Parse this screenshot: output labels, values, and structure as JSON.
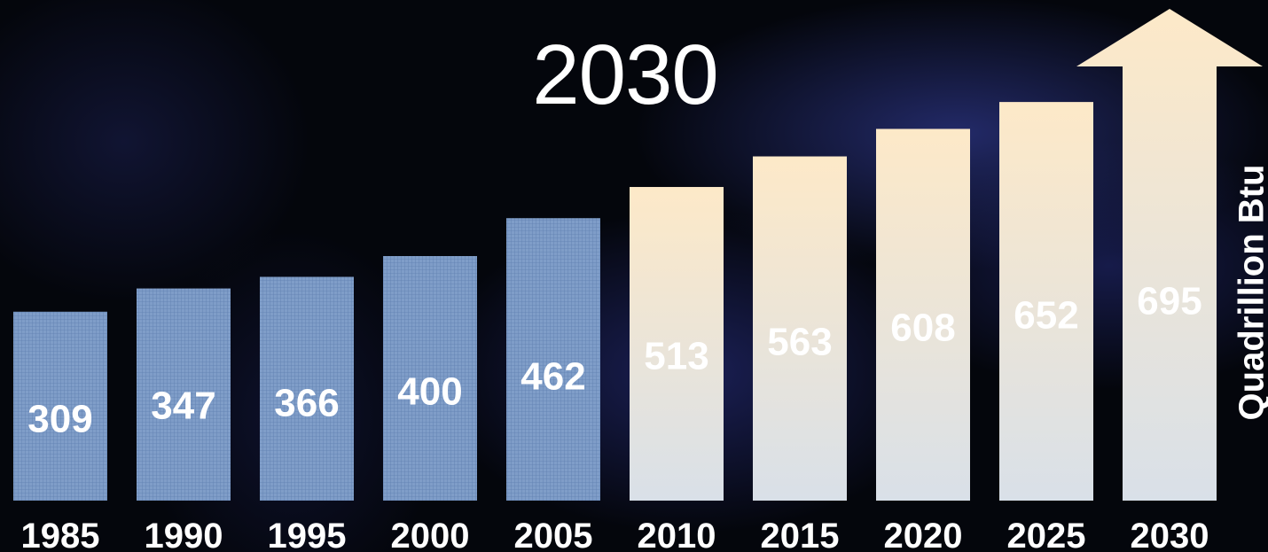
{
  "title": "2030",
  "colors": {
    "history_bar": "#7f9dc8",
    "projection_top": "#fde9c8",
    "projection_bottom": "#d9e0e8",
    "history_label": "#ffffff",
    "projection_label": "#ffffff"
  },
  "chart_data": {
    "type": "bar",
    "ylabel": "Quadrillion Btu",
    "categories": [
      "1985",
      "1990",
      "1995",
      "2000",
      "2005",
      "2010",
      "2015",
      "2020",
      "2025",
      "2030"
    ],
    "values": [
      309,
      347,
      366,
      400,
      462,
      513,
      563,
      608,
      652,
      695
    ],
    "history_categories": [
      "1985",
      "1990",
      "1995",
      "2000",
      "2005"
    ],
    "projection_categories": [
      "2010",
      "2015",
      "2020",
      "2025",
      "2030"
    ],
    "last_bar_style": "arrow",
    "grid": false,
    "legend": "none"
  }
}
